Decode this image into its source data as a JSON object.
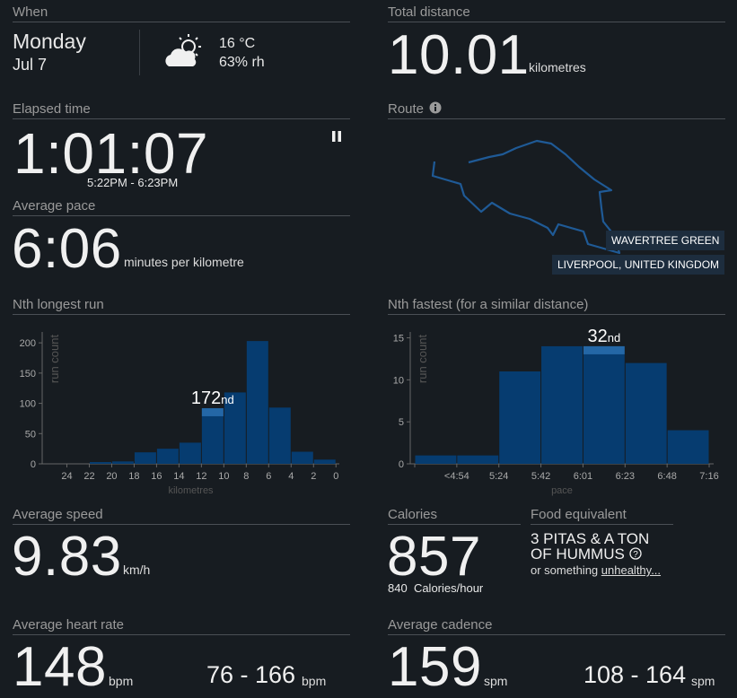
{
  "when": {
    "heading": "When",
    "day": "Monday",
    "date": "Jul 7",
    "temperature": "16 °C",
    "humidity": "63% rh"
  },
  "total_distance": {
    "heading": "Total distance",
    "value": "10.01",
    "unit": "kilometres"
  },
  "elapsed_time": {
    "heading": "Elapsed time",
    "value": "1:01:07",
    "range": "5:22PM - 6:23PM"
  },
  "route": {
    "heading": "Route",
    "labels": [
      "WAVERTREE GREEN",
      "LIVERPOOL, UNITED KINGDOM"
    ]
  },
  "average_pace": {
    "heading": "Average pace",
    "value": "6:06",
    "unit": "minutes per kilometre"
  },
  "average_speed": {
    "heading": "Average speed",
    "value": "9.83",
    "unit": "km/h"
  },
  "calories": {
    "heading": "Calories",
    "value": "857",
    "rate": "840",
    "rate_unit": "Calories/hour"
  },
  "food": {
    "heading": "Food equivalent",
    "text": "3 PITAS & A TON OF HUMMUS",
    "note": "or something",
    "link": "unhealthy..."
  },
  "heart_rate": {
    "heading": "Average heart rate",
    "value": "148",
    "unit": "bpm",
    "range": "76 - 166",
    "range_unit": "bpm"
  },
  "cadence": {
    "heading": "Average cadence",
    "value": "159",
    "unit": "spm",
    "range": "108 - 164",
    "range_unit": "spm"
  },
  "chart_data": [
    {
      "type": "histogram",
      "title": "Nth longest run",
      "y_label": "run count",
      "x_label": "kilometres",
      "bins": [
        0,
        2,
        4,
        6,
        8,
        10,
        12,
        14,
        16,
        18,
        20,
        22
      ],
      "values": [
        7,
        20,
        93,
        203,
        118,
        92,
        35,
        25,
        19,
        4,
        3
      ],
      "xlim": [
        26.2,
        -0.3
      ],
      "xticks": [
        24,
        22,
        20,
        18,
        16,
        14,
        12,
        10,
        8,
        6,
        4,
        2,
        0
      ],
      "ylim": [
        0,
        218
      ],
      "yticks": [
        0,
        50,
        100,
        150,
        200
      ],
      "color": "#063c70",
      "highlight": {
        "index": 5,
        "label": "172",
        "suffix": "nd"
      }
    },
    {
      "type": "histogram",
      "title": "Nth fastest (for a similar distance)",
      "y_label": "run count",
      "x_label": "pace",
      "bin_labels": [
        null,
        "<4:54",
        "5:24",
        "5:42",
        "6:01",
        "6:23",
        "6:48",
        "7:16"
      ],
      "values": [
        1,
        1,
        11,
        14,
        14,
        12,
        4
      ],
      "ylim": [
        0,
        15.7
      ],
      "yticks": [
        0,
        5,
        10,
        15
      ],
      "color": "#063c70",
      "highlight": {
        "index": 4,
        "label": "32",
        "suffix": "nd"
      }
    }
  ]
}
